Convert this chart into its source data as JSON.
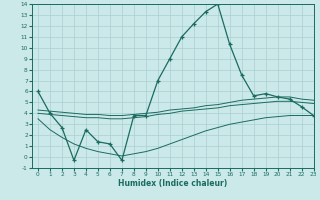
{
  "xlabel": "Humidex (Indice chaleur)",
  "background_color": "#cce9e9",
  "grid_color": "#aacfcf",
  "line_color": "#1a6b60",
  "xlim": [
    -0.5,
    23
  ],
  "ylim": [
    -1,
    14
  ],
  "yticks": [
    -1,
    0,
    1,
    2,
    3,
    4,
    5,
    6,
    7,
    8,
    9,
    10,
    11,
    12,
    13,
    14
  ],
  "xticks": [
    0,
    1,
    2,
    3,
    4,
    5,
    6,
    7,
    8,
    9,
    10,
    11,
    12,
    13,
    14,
    15,
    16,
    17,
    18,
    19,
    20,
    21,
    22,
    23
  ],
  "line1_x": [
    0,
    1,
    2,
    3,
    4,
    5,
    6,
    7,
    8,
    9,
    10,
    11,
    12,
    13,
    14,
    15,
    16,
    17,
    18,
    19,
    20,
    21,
    22,
    23
  ],
  "line1_y": [
    6.0,
    4.0,
    2.7,
    -0.3,
    2.5,
    1.4,
    1.2,
    -0.3,
    3.8,
    3.8,
    7.0,
    9.0,
    11.0,
    12.2,
    13.3,
    14.0,
    10.3,
    7.5,
    5.6,
    5.8,
    5.5,
    5.3,
    4.6,
    3.8
  ],
  "line2_x": [
    0,
    1,
    2,
    3,
    4,
    5,
    6,
    7,
    8,
    9,
    10,
    11,
    12,
    13,
    14,
    15,
    16,
    17,
    18,
    19,
    20,
    21,
    22,
    23
  ],
  "line2_y": [
    4.3,
    4.2,
    4.1,
    4.0,
    3.9,
    3.9,
    3.8,
    3.8,
    3.9,
    4.0,
    4.1,
    4.3,
    4.4,
    4.5,
    4.7,
    4.8,
    5.0,
    5.2,
    5.3,
    5.4,
    5.5,
    5.5,
    5.3,
    5.2
  ],
  "line3_x": [
    0,
    1,
    2,
    3,
    4,
    5,
    6,
    7,
    8,
    9,
    10,
    11,
    12,
    13,
    14,
    15,
    16,
    17,
    18,
    19,
    20,
    21,
    22,
    23
  ],
  "line3_y": [
    4.0,
    3.9,
    3.8,
    3.7,
    3.6,
    3.6,
    3.5,
    3.5,
    3.6,
    3.7,
    3.9,
    4.0,
    4.2,
    4.3,
    4.4,
    4.5,
    4.7,
    4.8,
    4.9,
    5.0,
    5.1,
    5.1,
    5.0,
    4.9
  ],
  "line4_x": [
    0,
    1,
    2,
    3,
    4,
    5,
    6,
    7,
    8,
    9,
    10,
    11,
    12,
    13,
    14,
    15,
    16,
    17,
    18,
    19,
    20,
    21,
    22,
    23
  ],
  "line4_y": [
    3.5,
    2.5,
    1.8,
    1.2,
    0.8,
    0.5,
    0.3,
    0.1,
    0.3,
    0.5,
    0.8,
    1.2,
    1.6,
    2.0,
    2.4,
    2.7,
    3.0,
    3.2,
    3.4,
    3.6,
    3.7,
    3.8,
    3.8,
    3.8
  ]
}
